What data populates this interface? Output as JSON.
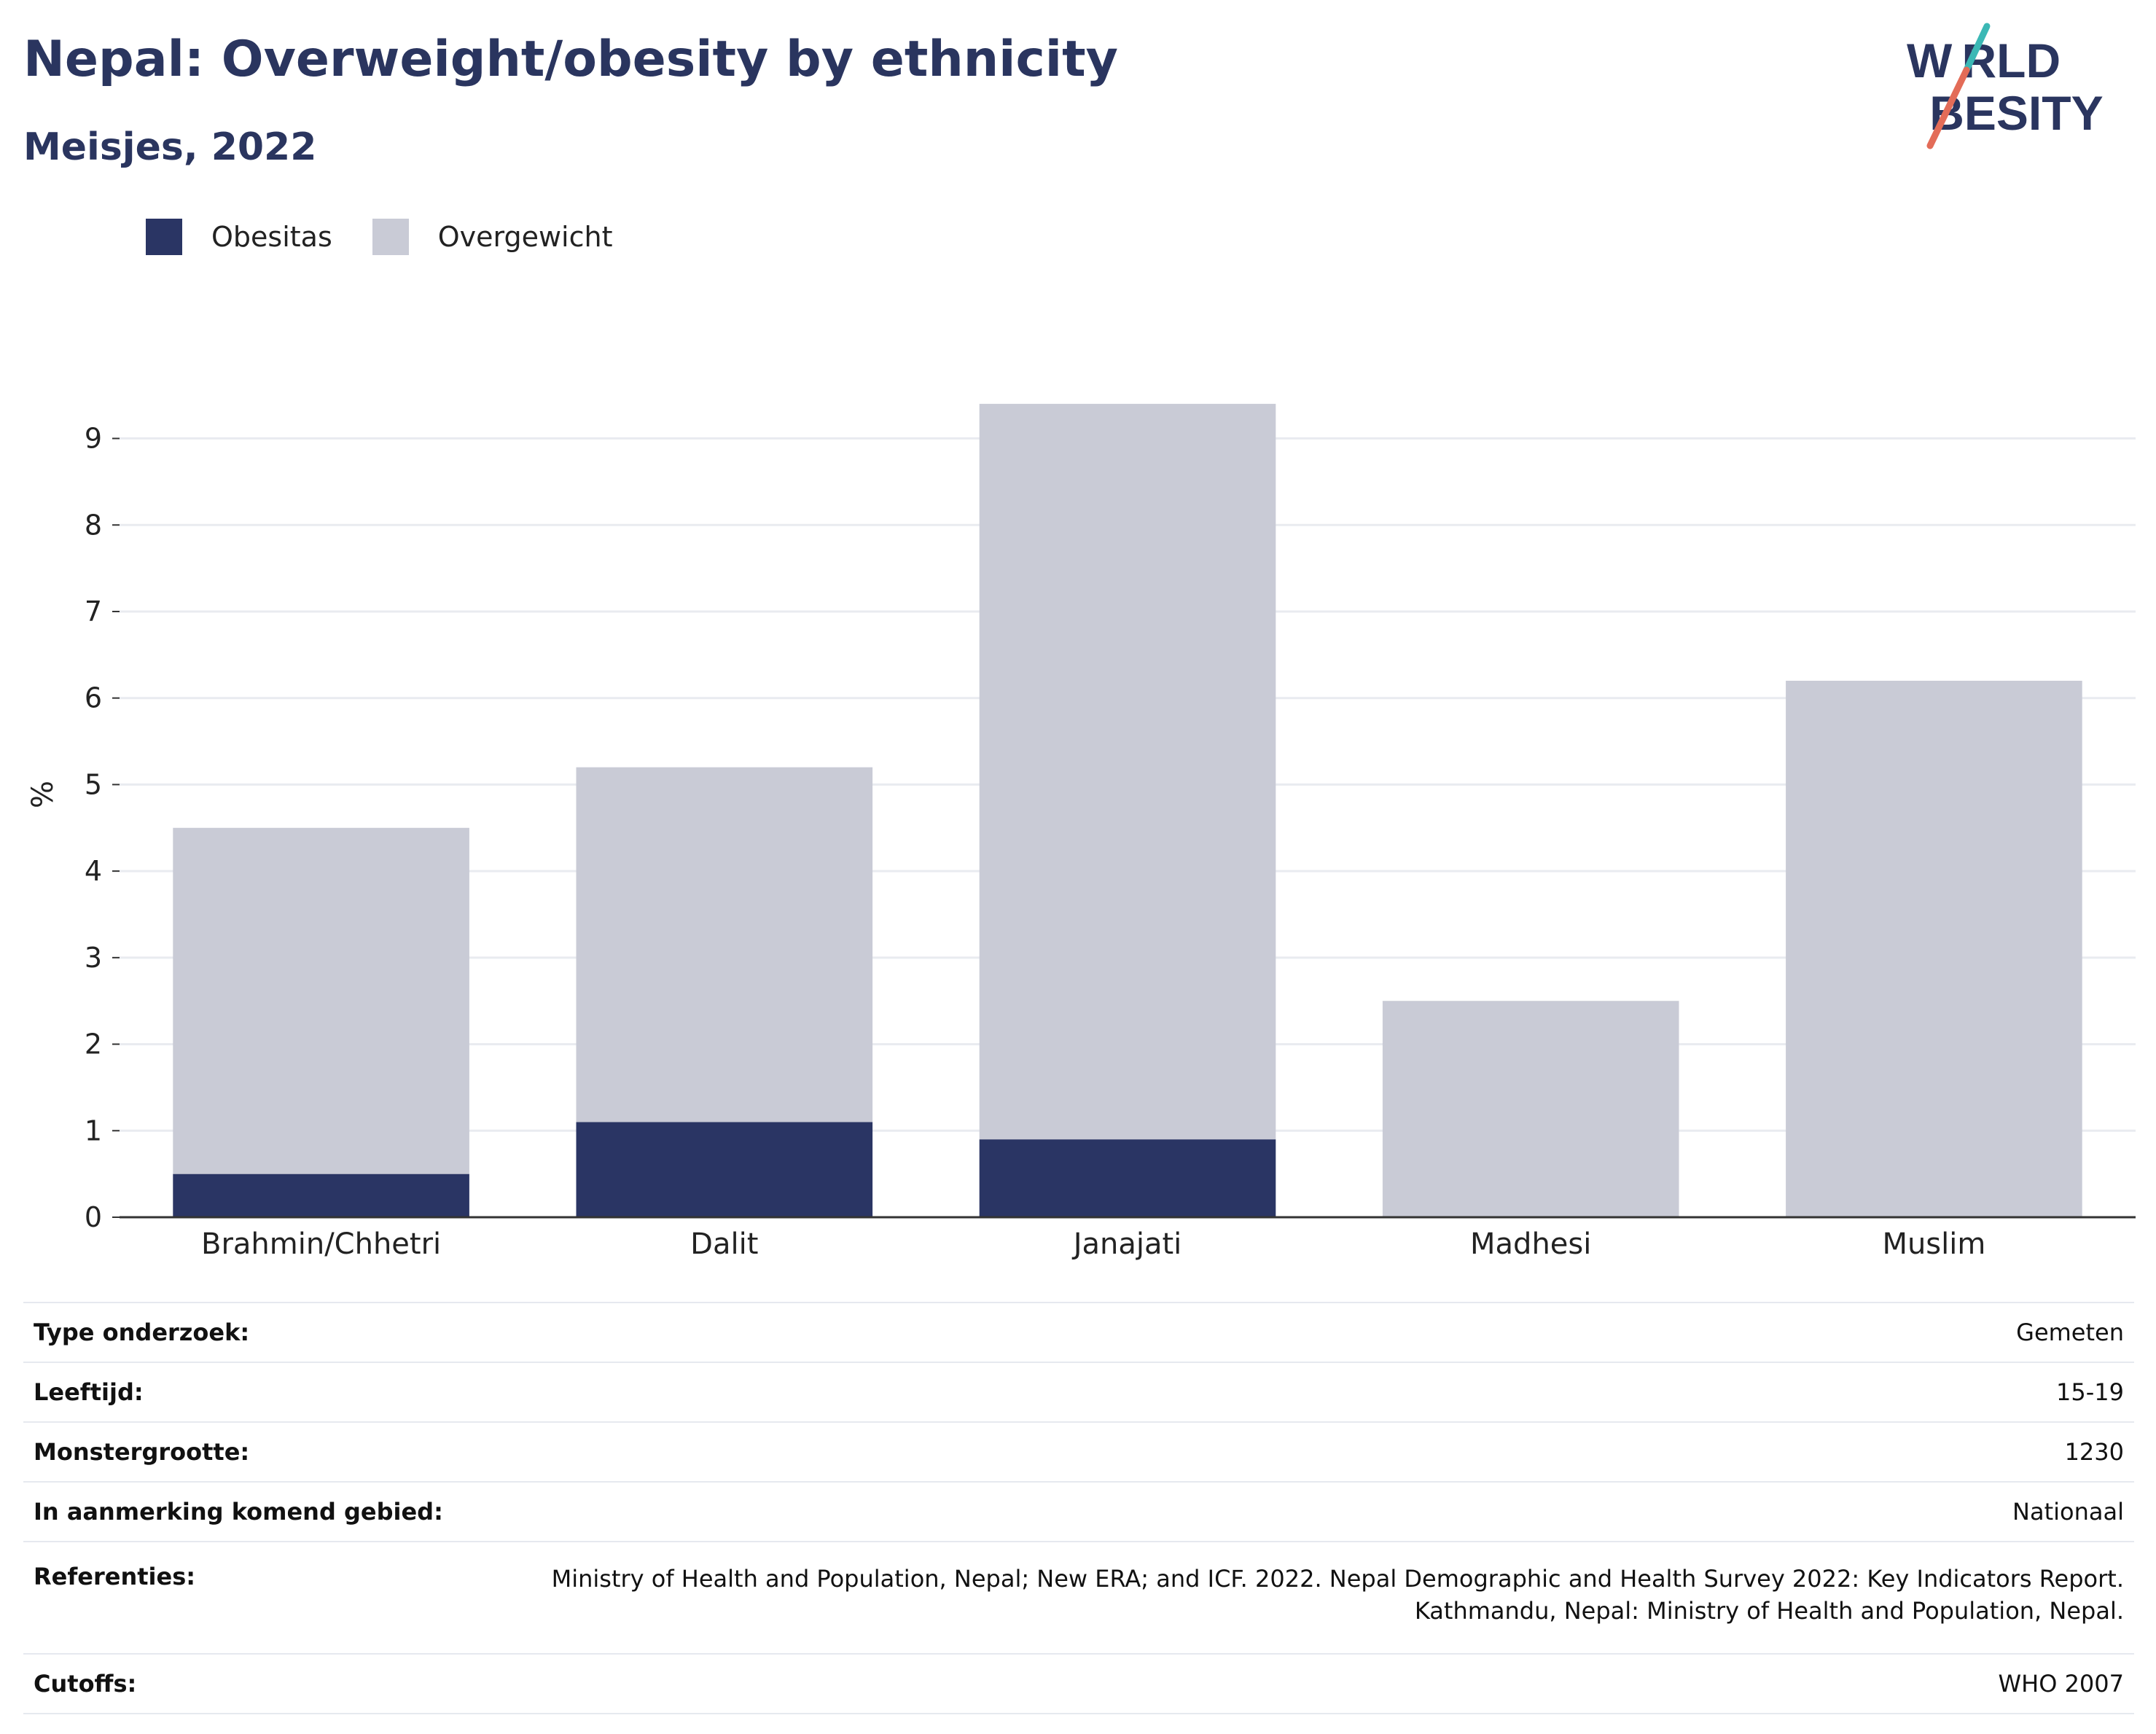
{
  "header": {
    "title": "Nepal: Overweight/obesity by ethnicity",
    "subtitle": "Meisjes, 2022"
  },
  "logo": {
    "line1": "W RLD",
    "line2": " BESITY",
    "colors": {
      "text": "#2a355f",
      "slash_top": "#3bb8b5",
      "slash_bottom": "#e36c58"
    }
  },
  "colors": {
    "obesity": "#2a3564",
    "overweight": "#c9cbd6",
    "grid": "#e9ebf0",
    "axis": "#333333"
  },
  "legend": [
    {
      "label": "Obesitas",
      "color": "#2a3564"
    },
    {
      "label": "Overgewicht",
      "color": "#c9cbd6"
    }
  ],
  "chart_data": {
    "type": "bar",
    "stacked": true,
    "categories": [
      "Brahmin/Chhetri",
      "Dalit",
      "Janajati",
      "Madhesi",
      "Muslim"
    ],
    "series": [
      {
        "name": "Obesitas",
        "values": [
          0.5,
          1.1,
          0.9,
          0,
          0
        ]
      },
      {
        "name": "Overgewicht",
        "values": [
          4.0,
          4.1,
          8.5,
          2.5,
          6.2
        ]
      }
    ],
    "ylabel": "%",
    "xlabel": "",
    "ylim": [
      0,
      9.35
    ],
    "yticks": [
      0,
      1,
      2,
      3,
      4,
      5,
      6,
      7,
      8,
      9
    ],
    "grid": true,
    "legend_position": "top-left"
  },
  "info": [
    {
      "label": "Type onderzoek:",
      "value": [
        "Gemeten"
      ]
    },
    {
      "label": "Leeftijd:",
      "value": [
        "15-19"
      ]
    },
    {
      "label": "Monstergrootte:",
      "value": [
        "1230"
      ]
    },
    {
      "label": "In aanmerking komend gebied:",
      "value": [
        "Nationaal"
      ]
    },
    {
      "label": "Referenties:",
      "value": [
        "Ministry of Health and Population, Nepal; New ERA; and ICF. 2022. Nepal Demographic and Health Survey 2022: Key Indicators Report.",
        "Kathmandu, Nepal: Ministry of Health and Population, Nepal."
      ]
    },
    {
      "label": "Cutoffs:",
      "value": [
        "WHO 2007"
      ]
    }
  ]
}
